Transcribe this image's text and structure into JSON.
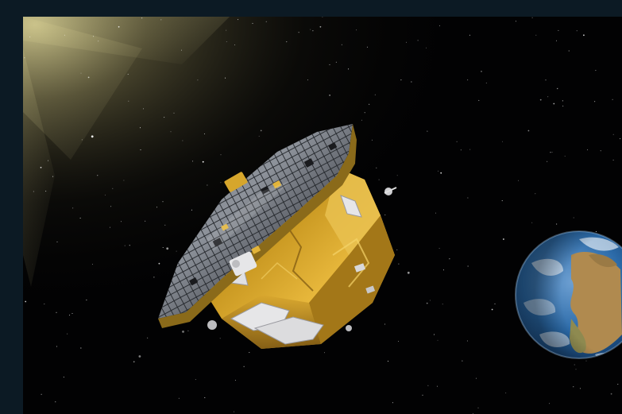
{
  "image": {
    "subject": "spacecraft-with-earth",
    "colors": {
      "frame": "#0c1a24",
      "space": "#020203",
      "sun_glow": "#d8cf93",
      "solar_panel": "#4b4e55",
      "gold_foil": "#c6951f",
      "earth_ocean": "#2b6aa8",
      "earth_land": "#b08a4f"
    }
  }
}
